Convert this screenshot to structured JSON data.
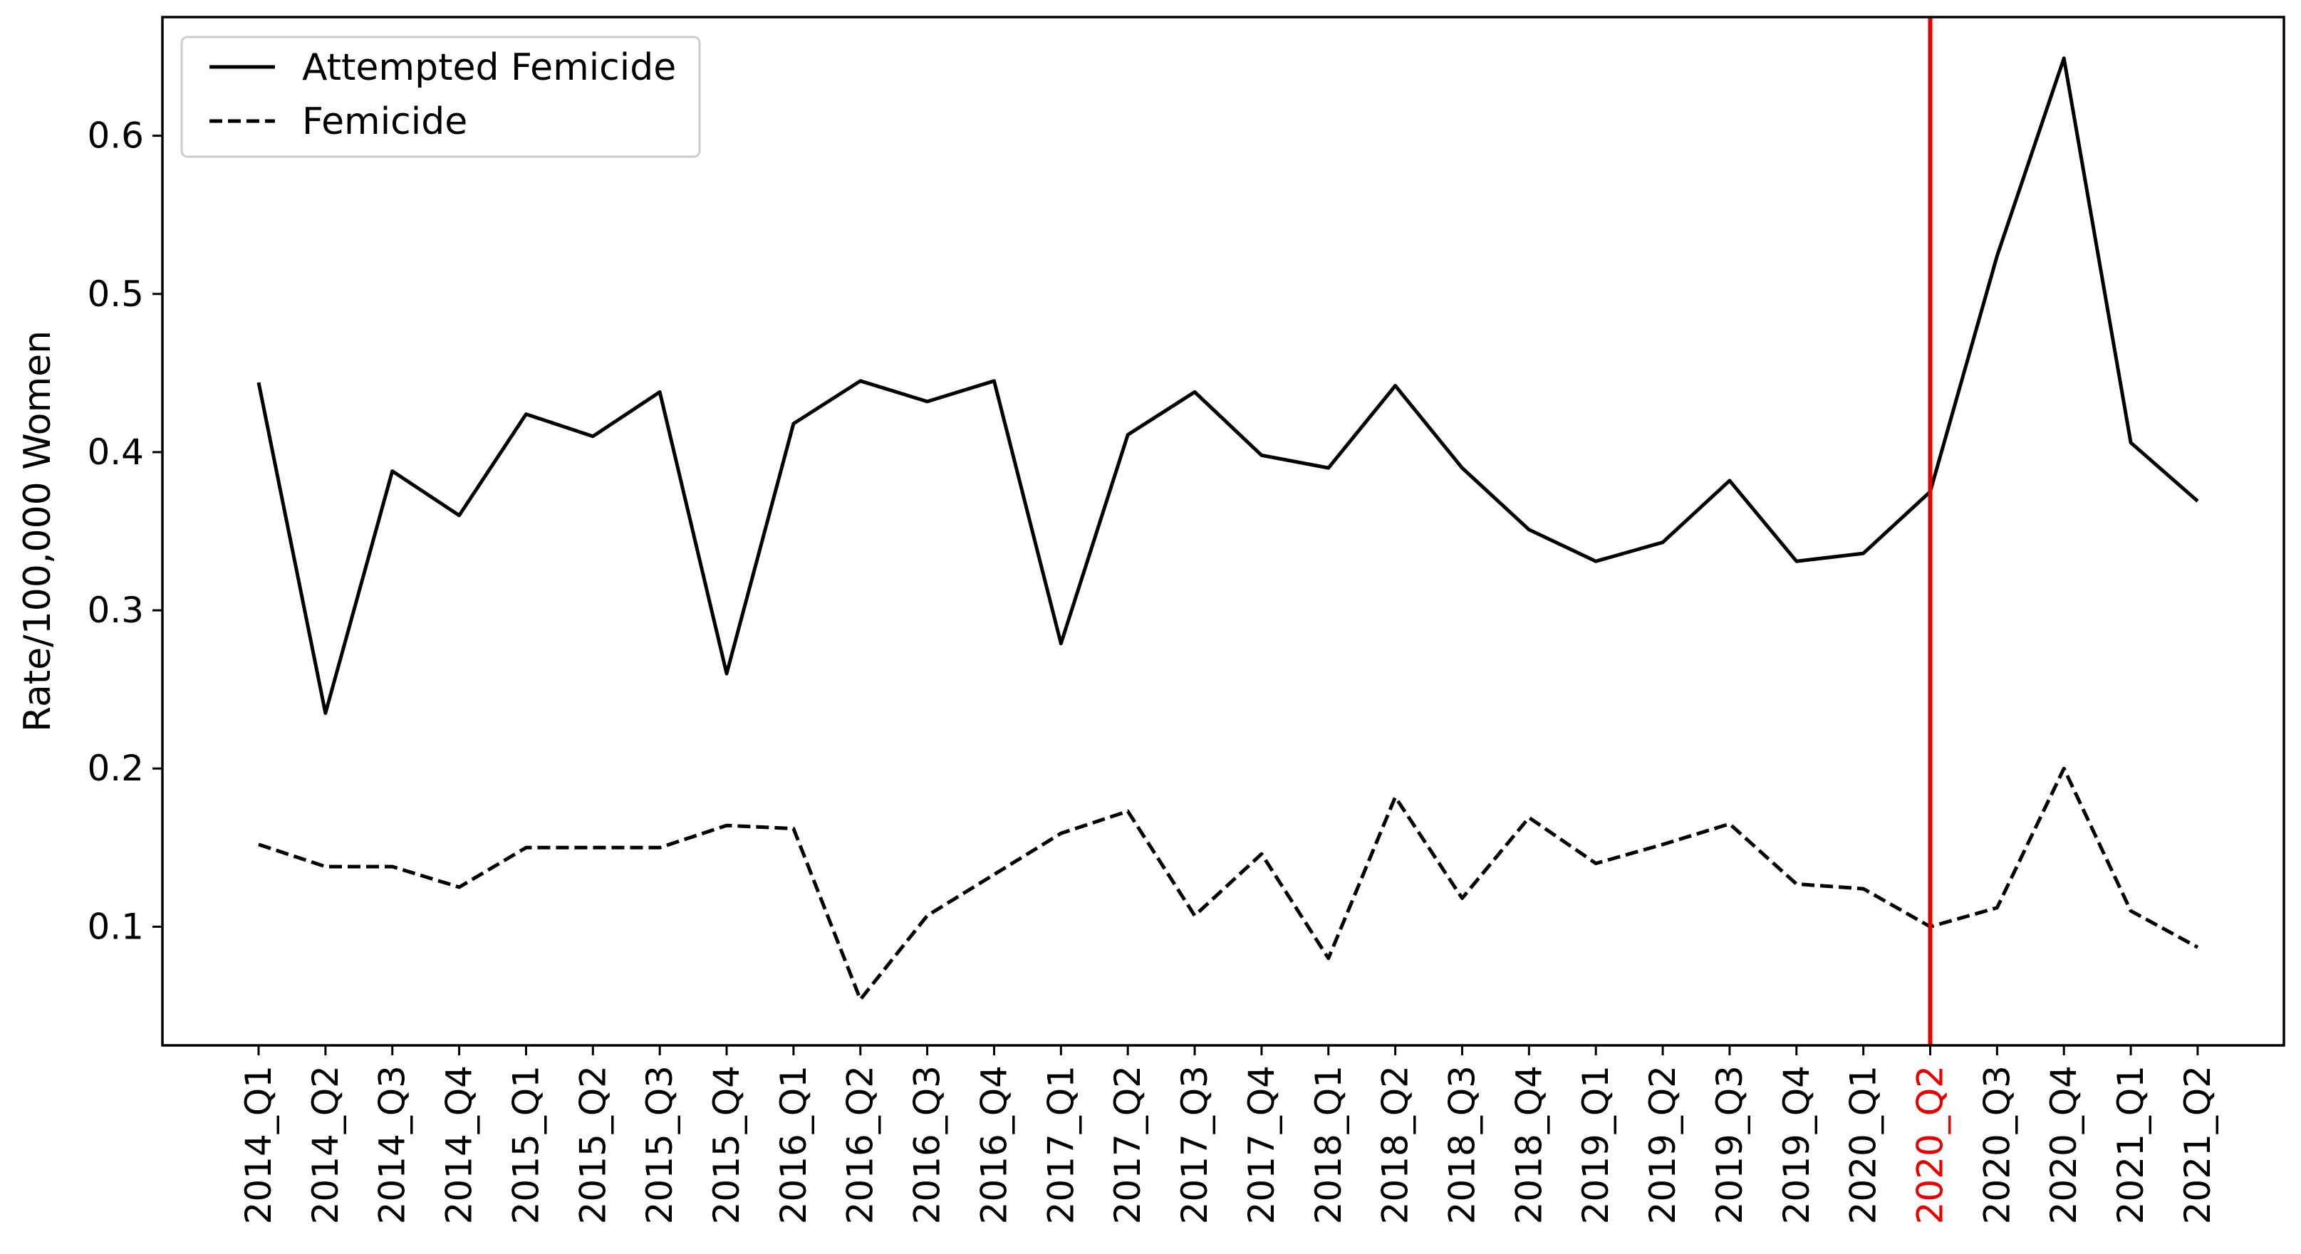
{
  "chart_data": {
    "type": "line",
    "title": "",
    "xlabel": "",
    "ylabel": "Rate/100,000 Women",
    "categories": [
      "2014_Q1",
      "2014_Q2",
      "2014_Q3",
      "2014_Q4",
      "2015_Q1",
      "2015_Q2",
      "2015_Q3",
      "2015_Q4",
      "2016_Q1",
      "2016_Q2",
      "2016_Q3",
      "2016_Q4",
      "2017_Q1",
      "2017_Q2",
      "2017_Q3",
      "2017_Q4",
      "2018_Q1",
      "2018_Q2",
      "2018_Q3",
      "2018_Q4",
      "2019_Q1",
      "2019_Q2",
      "2019_Q3",
      "2019_Q4",
      "2020_Q1",
      "2020_Q2",
      "2020_Q3",
      "2020_Q4",
      "2021_Q1",
      "2021_Q2"
    ],
    "series": [
      {
        "name": "Attempted Femicide",
        "line_style": "solid",
        "color": "#000000",
        "values": [
          0.444,
          0.235,
          0.388,
          0.36,
          0.424,
          0.41,
          0.438,
          0.26,
          0.418,
          0.445,
          0.432,
          0.445,
          0.279,
          0.411,
          0.438,
          0.398,
          0.39,
          0.442,
          0.39,
          0.351,
          0.331,
          0.343,
          0.382,
          0.331,
          0.336,
          0.375,
          0.524,
          0.649,
          0.406,
          0.369
        ]
      },
      {
        "name": "Femicide",
        "line_style": "dashed",
        "color": "#000000",
        "values": [
          0.152,
          0.138,
          0.138,
          0.125,
          0.15,
          0.15,
          0.15,
          0.164,
          0.162,
          0.054,
          0.107,
          0.133,
          0.159,
          0.173,
          0.107,
          0.146,
          0.08,
          0.182,
          0.118,
          0.169,
          0.14,
          0.152,
          0.165,
          0.127,
          0.124,
          0.1,
          0.112,
          0.2,
          0.11,
          0.087
        ]
      }
    ],
    "ylim": [
      0.025,
      0.675
    ],
    "yticks": [
      0.1,
      0.2,
      0.3,
      0.4,
      0.5,
      0.6
    ],
    "ytick_labels": [
      "0.1",
      "0.2",
      "0.3",
      "0.4",
      "0.5",
      "0.6"
    ],
    "highlight": {
      "category": "2020_Q2",
      "color": "#e60000"
    },
    "legend_position": "top-left",
    "grid": false
  }
}
